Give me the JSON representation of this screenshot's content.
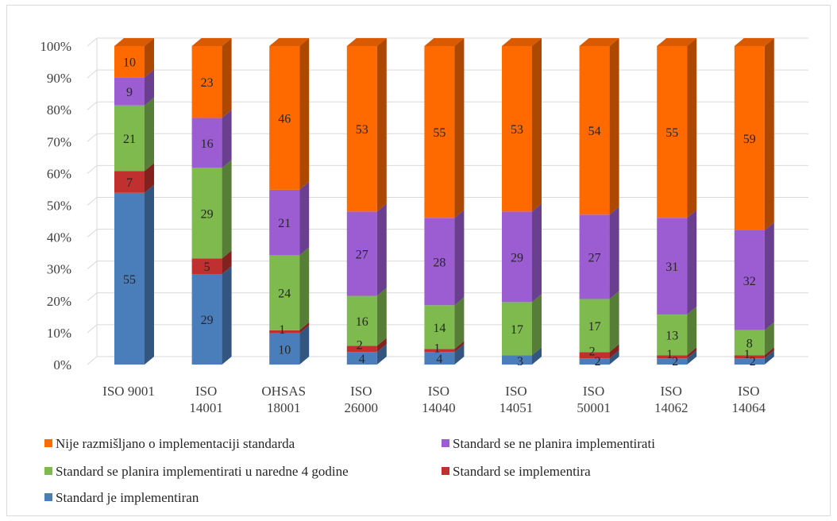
{
  "chart_data": {
    "type": "bar",
    "stacked": true,
    "percent": true,
    "three_d": true,
    "title": "",
    "xlabel": "",
    "ylabel": "",
    "ylim": [
      0,
      100
    ],
    "y_ticks": [
      "0%",
      "10%",
      "20%",
      "30%",
      "40%",
      "50%",
      "60%",
      "70%",
      "80%",
      "90%",
      "100%"
    ],
    "grid": true,
    "legend_position": "bottom",
    "categories": [
      [
        "ISO 9001"
      ],
      [
        "ISO",
        "14001"
      ],
      [
        "OHSAS",
        "18001"
      ],
      [
        "ISO",
        "26000"
      ],
      [
        "ISO",
        "14040"
      ],
      [
        "ISO",
        "14051"
      ],
      [
        "ISO",
        "50001"
      ],
      [
        "ISO",
        "14062"
      ],
      [
        "ISO",
        "14064"
      ]
    ],
    "series": [
      {
        "name": "Standard je implementiran",
        "color": "#4a7ebb",
        "values": [
          55,
          29,
          10,
          4,
          4,
          3,
          2,
          2,
          2
        ]
      },
      {
        "name": "Standard se implementira",
        "color": "#c0302e",
        "values": [
          7,
          5,
          1,
          2,
          1,
          0,
          2,
          1,
          1
        ]
      },
      {
        "name": "Standard se planira implementirati u naredne 4 godine",
        "color": "#7fba4f",
        "values": [
          21,
          29,
          24,
          16,
          14,
          17,
          17,
          13,
          8
        ]
      },
      {
        "name": "Standard se ne planira implementirati",
        "color": "#9c5dd3",
        "values": [
          9,
          16,
          21,
          27,
          28,
          29,
          27,
          31,
          32
        ]
      },
      {
        "name": "Nije razmišljano o implementaciji standarda",
        "color": "#ff6a00",
        "values": [
          10,
          23,
          46,
          53,
          55,
          53,
          54,
          55,
          59
        ]
      }
    ],
    "legend_order": [
      4,
      3,
      2,
      1,
      0
    ]
  }
}
